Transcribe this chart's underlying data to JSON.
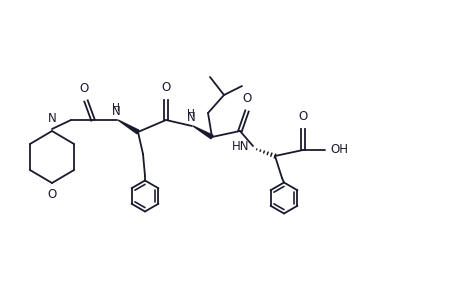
{
  "figsize": [
    4.61,
    3.05
  ],
  "dpi": 100,
  "bg_color": "#ffffff",
  "line_color": "#1a1a2e",
  "line_width": 1.3,
  "font_size": 8.5,
  "xlim": [
    0,
    4.61
  ],
  "ylim": [
    0,
    3.05
  ]
}
